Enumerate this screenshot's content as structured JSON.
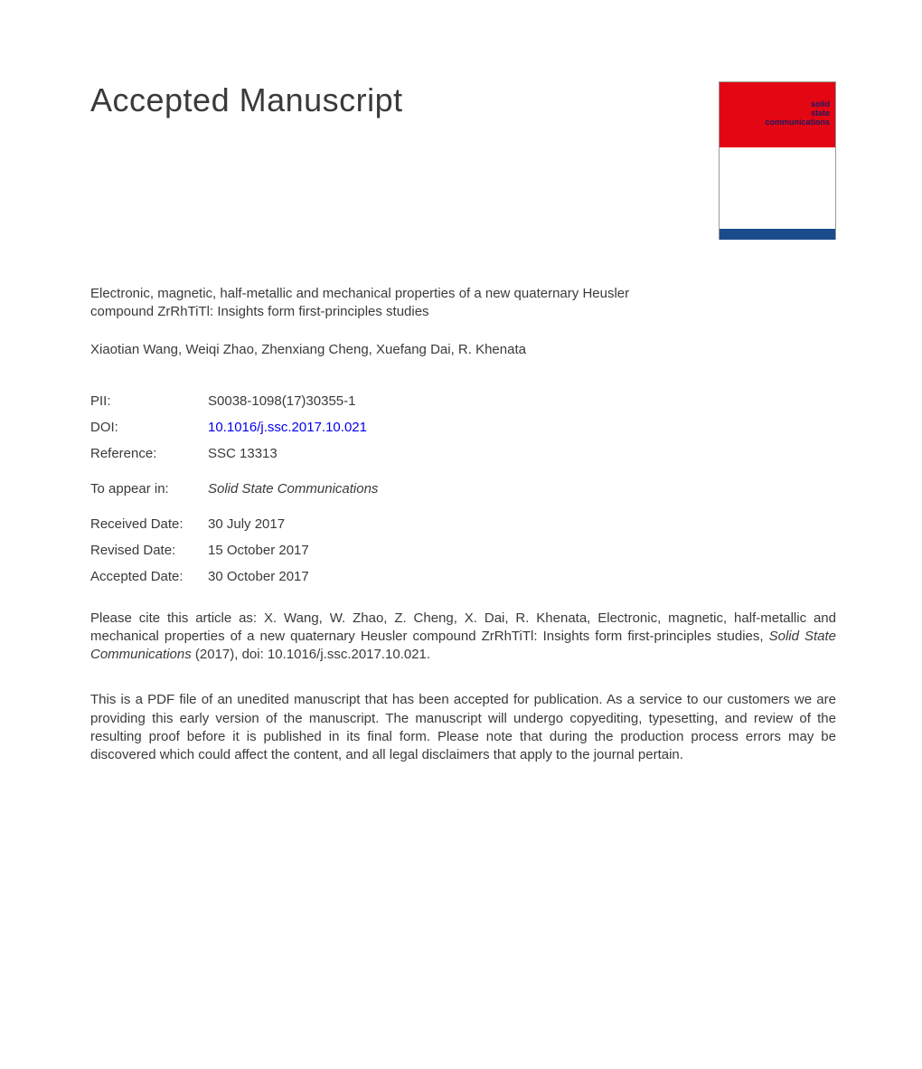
{
  "heading": "Accepted Manuscript",
  "journal_cover": {
    "top_color": "#e30613",
    "bottom_color": "#1a4b8c",
    "title_line1": "solid",
    "title_line2": "state",
    "title_line3": "communications"
  },
  "article_title": "Electronic, magnetic, half-metallic and mechanical properties of a new quaternary Heusler compound ZrRhTiTl: Insights form first-principles studies",
  "authors": "Xiaotian Wang, Weiqi Zhao, Zhenxiang Cheng, Xuefang Dai, R. Khenata",
  "meta": {
    "pii": {
      "label": "PII:",
      "value": "S0038-1098(17)30355-1"
    },
    "doi": {
      "label": "DOI:",
      "value": "10.1016/j.ssc.2017.10.021"
    },
    "reference": {
      "label": "Reference:",
      "value": "SSC 13313"
    },
    "to_appear": {
      "label": "To appear in:",
      "value": "Solid State Communications"
    },
    "received": {
      "label": "Received Date:",
      "value": "30 July 2017"
    },
    "revised": {
      "label": "Revised Date:",
      "value": "15 October 2017"
    },
    "accepted": {
      "label": "Accepted Date:",
      "value": "30 October 2017"
    }
  },
  "citation": {
    "prefix": "Please cite this article as: X. Wang, W. Zhao, Z. Cheng, X. Dai, R. Khenata, Electronic, magnetic, half-metallic and mechanical properties of a new quaternary Heusler compound ZrRhTiTl: Insights form first-principles studies, ",
    "journal": "Solid State Communications",
    "suffix": " (2017), doi: 10.1016/j.ssc.2017.10.021."
  },
  "disclaimer": "This is a PDF file of an unedited manuscript that has been accepted for publication. As a service to our customers we are providing this early version of the manuscript. The manuscript will undergo copyediting, typesetting, and review of the resulting proof before it is published in its final form. Please note that during the production process errors may be discovered which could affect the content, and all legal disclaimers that apply to the journal pertain."
}
